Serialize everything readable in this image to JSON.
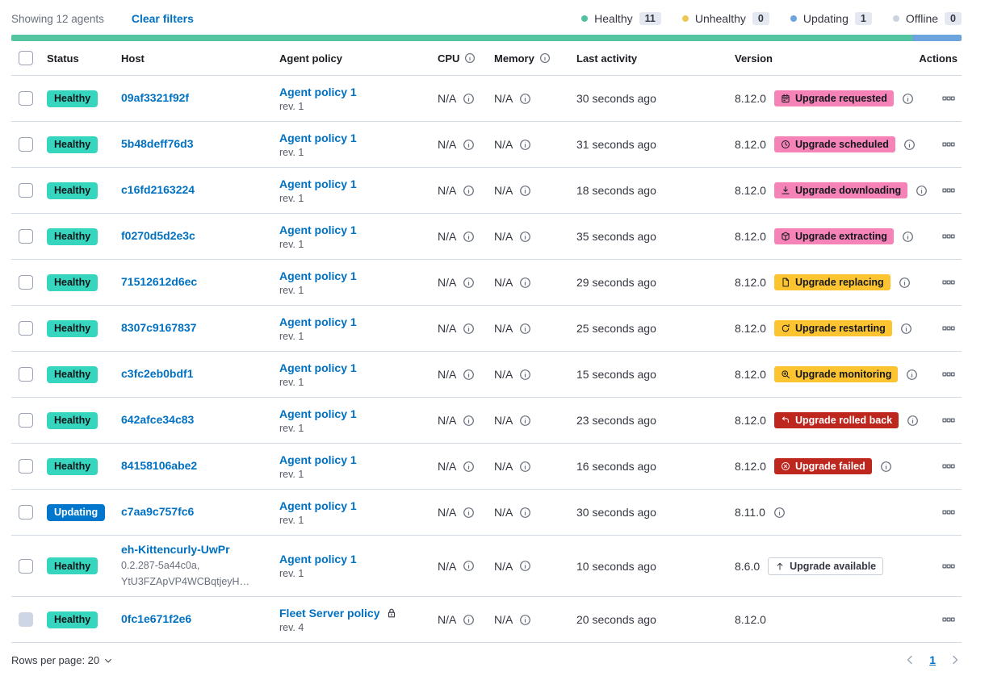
{
  "toolbar": {
    "showing": "Showing 12 agents",
    "clear_filters": "Clear filters"
  },
  "legend": [
    {
      "label": "Healthy",
      "count": "11",
      "color": "#54C0A2"
    },
    {
      "label": "Unhealthy",
      "count": "0",
      "color": "#EDC855"
    },
    {
      "label": "Updating",
      "count": "1",
      "color": "#6CA4DD"
    },
    {
      "label": "Offline",
      "count": "0",
      "color": "#CBD3DF"
    }
  ],
  "health_bar": {
    "segments": [
      {
        "color": "#55C4A0",
        "fraction": 0.948
      },
      {
        "color": "#6CA4DD",
        "fraction": 0.052
      }
    ]
  },
  "palette": {
    "link": "#0071C2",
    "healthy": "#36D6BE",
    "updating": "#0077CC",
    "pink": "#F583B7",
    "yellow": "#FDC432",
    "red": "#BD271E"
  },
  "table": {
    "headers": [
      {
        "label": "",
        "type": "checkbox"
      },
      {
        "label": "Status"
      },
      {
        "label": "Host"
      },
      {
        "label": "Agent policy"
      },
      {
        "label": "CPU",
        "info": true
      },
      {
        "label": "Memory",
        "info": true
      },
      {
        "label": "Last activity"
      },
      {
        "label": "Version"
      },
      {
        "label": "Actions",
        "align": "right"
      }
    ],
    "rows": [
      {
        "status": "Healthy",
        "status_variant": "healthy",
        "checkbox_disabled": false,
        "host": "09af3321f92f",
        "host_sub": [],
        "policy": "Agent policy 1",
        "policy_rev": "rev. 1",
        "policy_locked": false,
        "cpu": "N/A",
        "memory": "N/A",
        "last_activity": "30 seconds ago",
        "version": "8.12.0",
        "badge": {
          "label": "Upgrade requested",
          "icon": "calendar",
          "variant": "pink"
        },
        "version_info": true
      },
      {
        "status": "Healthy",
        "status_variant": "healthy",
        "checkbox_disabled": false,
        "host": "5b48deff76d3",
        "host_sub": [],
        "policy": "Agent policy 1",
        "policy_rev": "rev. 1",
        "policy_locked": false,
        "cpu": "N/A",
        "memory": "N/A",
        "last_activity": "31 seconds ago",
        "version": "8.12.0",
        "badge": {
          "label": "Upgrade scheduled",
          "icon": "clock",
          "variant": "pink"
        },
        "version_info": true
      },
      {
        "status": "Healthy",
        "status_variant": "healthy",
        "checkbox_disabled": false,
        "host": "c16fd2163224",
        "host_sub": [],
        "policy": "Agent policy 1",
        "policy_rev": "rev. 1",
        "policy_locked": false,
        "cpu": "N/A",
        "memory": "N/A",
        "last_activity": "18 seconds ago",
        "version": "8.12.0",
        "badge": {
          "label": "Upgrade downloading",
          "icon": "download",
          "variant": "pink"
        },
        "version_info": true
      },
      {
        "status": "Healthy",
        "status_variant": "healthy",
        "checkbox_disabled": false,
        "host": "f0270d5d2e3c",
        "host_sub": [],
        "policy": "Agent policy 1",
        "policy_rev": "rev. 1",
        "policy_locked": false,
        "cpu": "N/A",
        "memory": "N/A",
        "last_activity": "35 seconds ago",
        "version": "8.12.0",
        "badge": {
          "label": "Upgrade extracting",
          "icon": "package",
          "variant": "pink"
        },
        "version_info": true
      },
      {
        "status": "Healthy",
        "status_variant": "healthy",
        "checkbox_disabled": false,
        "host": "71512612d6ec",
        "host_sub": [],
        "policy": "Agent policy 1",
        "policy_rev": "rev. 1",
        "policy_locked": false,
        "cpu": "N/A",
        "memory": "N/A",
        "last_activity": "29 seconds ago",
        "version": "8.12.0",
        "badge": {
          "label": "Upgrade replacing",
          "icon": "document",
          "variant": "yellow"
        },
        "version_info": true
      },
      {
        "status": "Healthy",
        "status_variant": "healthy",
        "checkbox_disabled": false,
        "host": "8307c9167837",
        "host_sub": [],
        "policy": "Agent policy 1",
        "policy_rev": "rev. 1",
        "policy_locked": false,
        "cpu": "N/A",
        "memory": "N/A",
        "last_activity": "25 seconds ago",
        "version": "8.12.0",
        "badge": {
          "label": "Upgrade restarting",
          "icon": "refresh",
          "variant": "yellow"
        },
        "version_info": true
      },
      {
        "status": "Healthy",
        "status_variant": "healthy",
        "checkbox_disabled": false,
        "host": "c3fc2eb0bdf1",
        "host_sub": [],
        "policy": "Agent policy 1",
        "policy_rev": "rev. 1",
        "policy_locked": false,
        "cpu": "N/A",
        "memory": "N/A",
        "last_activity": "15 seconds ago",
        "version": "8.12.0",
        "badge": {
          "label": "Upgrade monitoring",
          "icon": "inspect",
          "variant": "yellow"
        },
        "version_info": true
      },
      {
        "status": "Healthy",
        "status_variant": "healthy",
        "checkbox_disabled": false,
        "host": "642afce34c83",
        "host_sub": [],
        "policy": "Agent policy 1",
        "policy_rev": "rev. 1",
        "policy_locked": false,
        "cpu": "N/A",
        "memory": "N/A",
        "last_activity": "23 seconds ago",
        "version": "8.12.0",
        "badge": {
          "label": "Upgrade rolled back",
          "icon": "return",
          "variant": "red"
        },
        "version_info": true
      },
      {
        "status": "Healthy",
        "status_variant": "healthy",
        "checkbox_disabled": false,
        "host": "84158106abe2",
        "host_sub": [],
        "policy": "Agent policy 1",
        "policy_rev": "rev. 1",
        "policy_locked": false,
        "cpu": "N/A",
        "memory": "N/A",
        "last_activity": "16 seconds ago",
        "version": "8.12.0",
        "badge": {
          "label": "Upgrade failed",
          "icon": "error",
          "variant": "red"
        },
        "version_info": true
      },
      {
        "status": "Updating",
        "status_variant": "updating",
        "checkbox_disabled": false,
        "host": "c7aa9c757fc6",
        "host_sub": [],
        "policy": "Agent policy 1",
        "policy_rev": "rev. 1",
        "policy_locked": false,
        "cpu": "N/A",
        "memory": "N/A",
        "last_activity": "30 seconds ago",
        "version": "8.11.0",
        "badge": null,
        "version_info": true
      },
      {
        "status": "Healthy",
        "status_variant": "healthy",
        "checkbox_disabled": false,
        "host": "eh-Kittencurly-UwPr",
        "host_sub": [
          "0.2.287-5a44c0a,",
          "YtU3FZApVP4WCBqtjeyH…"
        ],
        "policy": "Agent policy 1",
        "policy_rev": "rev. 1",
        "policy_locked": false,
        "cpu": "N/A",
        "memory": "N/A",
        "last_activity": "10 seconds ago",
        "version": "8.6.0",
        "badge": {
          "label": "Upgrade available",
          "icon": "arrow-up",
          "variant": "hollow"
        },
        "version_info": false
      },
      {
        "status": "Healthy",
        "status_variant": "healthy",
        "checkbox_disabled": true,
        "host": "0fc1e671f2e6",
        "host_sub": [],
        "policy": "Fleet Server policy",
        "policy_rev": "rev. 4",
        "policy_locked": true,
        "cpu": "N/A",
        "memory": "N/A",
        "last_activity": "20 seconds ago",
        "version": "8.12.0",
        "badge": null,
        "version_info": false
      }
    ]
  },
  "footer": {
    "rows_per_page": "Rows per page: 20",
    "page": "1"
  }
}
